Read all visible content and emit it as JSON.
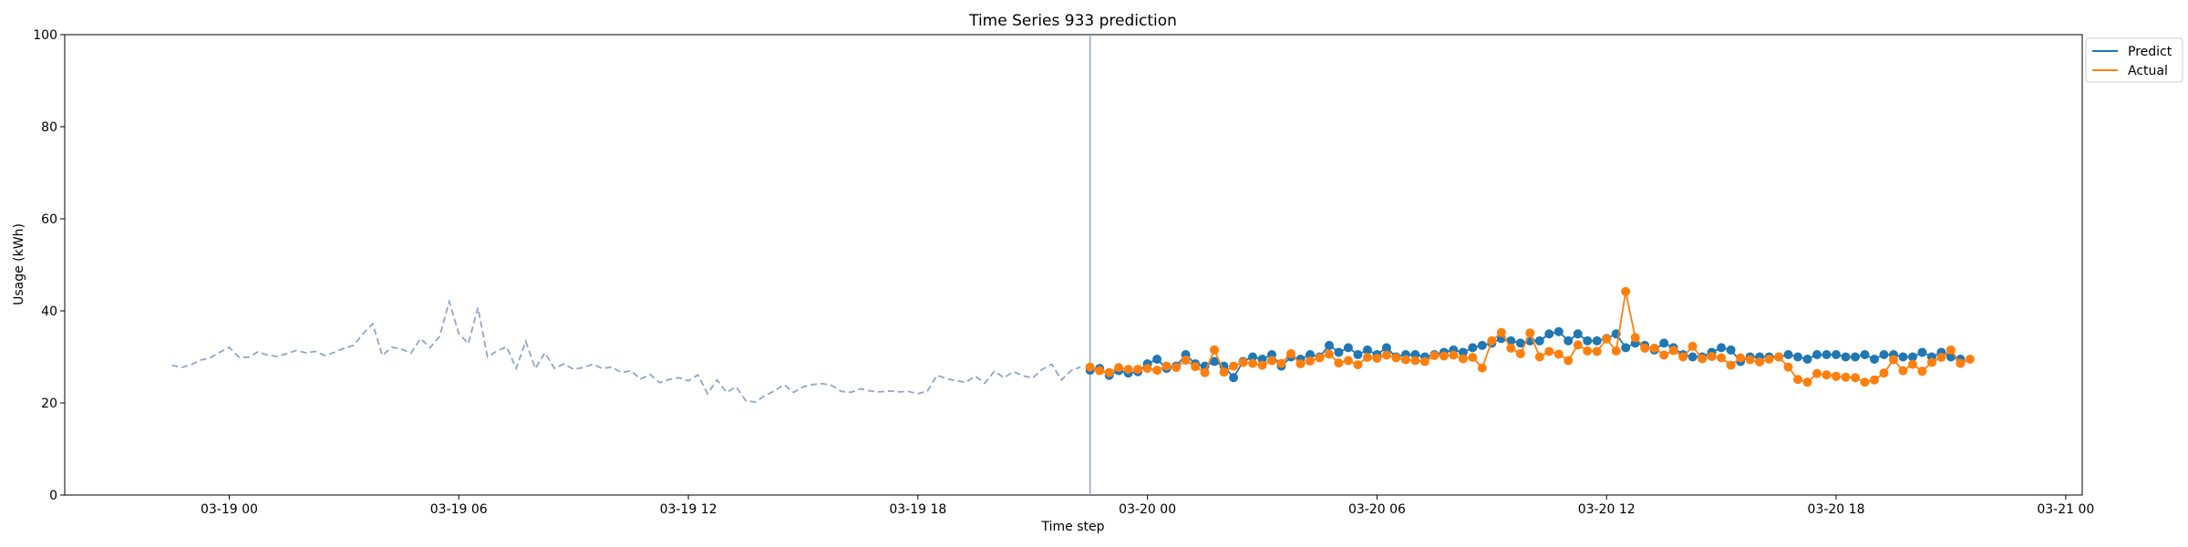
{
  "chart_data": {
    "type": "line",
    "title": "Time Series 933 prediction",
    "xlabel": "Time step",
    "ylabel": "Usage (kWh)",
    "ylim": [
      0,
      100
    ],
    "xlim": [
      "03-18 19:42",
      "03-21 00:26"
    ],
    "x_ticks": [
      "03-19 00",
      "03-19 06",
      "03-19 12",
      "03-19 18",
      "03-20 00",
      "03-20 06",
      "03-20 12",
      "03-20 18",
      "03-21 00"
    ],
    "y_ticks": [
      "0",
      "20",
      "40",
      "60",
      "80",
      "100"
    ],
    "grid": false,
    "legend_position": "upper-right outside",
    "split_time": "03-19 22:30",
    "history": {
      "start": "03-18 22:30",
      "step_minutes": 15,
      "color": "#8fa5c9",
      "style": "dashed",
      "values": [
        28.2,
        27.7,
        28.3,
        29.3,
        29.8,
        31.0,
        32.1,
        30.0,
        29.9,
        31.1,
        30.4,
        30.1,
        30.7,
        31.4,
        30.9,
        31.2,
        30.3,
        31.0,
        31.9,
        32.5,
        35.1,
        37.2,
        30.3,
        32.1,
        31.7,
        30.8,
        34.0,
        32.0,
        34.5,
        42.0,
        35.1,
        32.9,
        40.7,
        30.0,
        31.3,
        32.2,
        27.5,
        33.4,
        27.5,
        30.9,
        27.5,
        28.5,
        27.3,
        27.7,
        28.4,
        27.5,
        27.8,
        26.6,
        27.0,
        25.2,
        26.2,
        24.4,
        25.1,
        25.5,
        24.8,
        26.1,
        22.0,
        25.0,
        22.3,
        23.5,
        20.5,
        20.2,
        21.6,
        22.6,
        24.0,
        22.3,
        23.5,
        24.0,
        24.2,
        23.8,
        22.5,
        22.3,
        23.1,
        22.6,
        22.4,
        22.6,
        22.4,
        22.5,
        22.0,
        22.6,
        26.0,
        25.3,
        24.8,
        24.5,
        25.8,
        24.3,
        26.9,
        25.5,
        26.8,
        25.9,
        25.4,
        27.3,
        28.4,
        25.0,
        27.0,
        27.8
      ]
    },
    "series": [
      {
        "name": "Predict",
        "color": "#1f77b4",
        "start": "03-19 22:30",
        "step_minutes": 15,
        "values": [
          27.1,
          27.5,
          26.0,
          27.0,
          26.5,
          26.8,
          28.5,
          29.5,
          27.5,
          28.0,
          30.5,
          28.5,
          28.0,
          29.0,
          28.0,
          25.5,
          29.0,
          30.0,
          29.5,
          30.5,
          28.0,
          30.0,
          29.5,
          30.5,
          30.0,
          32.5,
          31.0,
          32.0,
          30.5,
          31.5,
          30.5,
          32.0,
          30.0,
          30.5,
          30.5,
          30.0,
          30.5,
          31.0,
          31.5,
          31.0,
          32.0,
          32.5,
          33.0,
          34.0,
          33.5,
          33.0,
          33.5,
          33.5,
          35.0,
          35.5,
          33.5,
          35.0,
          33.5,
          33.5,
          34.0,
          35.0,
          32.0,
          33.0,
          32.5,
          31.5,
          33.0,
          32.0,
          30.5,
          30.0,
          30.0,
          31.0,
          32.0,
          31.5,
          29.0,
          30.0,
          30.0,
          30.0,
          30.0,
          30.5,
          30.0,
          29.5,
          30.5,
          30.5,
          30.5,
          30.0,
          30.0,
          30.5,
          29.5,
          30.5,
          30.5,
          30.0,
          30.0,
          31.0,
          30.0,
          31.0,
          30.0,
          29.5
        ]
      },
      {
        "name": "Actual",
        "color": "#ff7f0e",
        "start": "03-19 22:30",
        "step_minutes": 15,
        "values": [
          27.8,
          27.0,
          26.6,
          27.7,
          27.3,
          27.3,
          27.5,
          27.1,
          28.0,
          27.7,
          29.3,
          27.9,
          26.6,
          31.5,
          26.7,
          28.0,
          28.8,
          28.6,
          28.2,
          29.2,
          28.6,
          30.7,
          28.5,
          29.1,
          29.8,
          30.6,
          28.7,
          29.2,
          28.3,
          29.9,
          29.7,
          30.4,
          29.8,
          29.4,
          29.2,
          29.0,
          30.3,
          30.2,
          30.4,
          29.6,
          29.9,
          27.6,
          33.5,
          35.3,
          31.9,
          30.7,
          35.2,
          30.0,
          31.2,
          30.6,
          29.2,
          32.6,
          31.3,
          31.2,
          33.9,
          31.3,
          44.2,
          34.2,
          31.9,
          31.9,
          30.4,
          31.4,
          30.0,
          32.3,
          29.6,
          30.1,
          29.8,
          28.2,
          29.8,
          29.4,
          28.9,
          29.5,
          30.0,
          27.8,
          25.1,
          24.5,
          26.4,
          26.1,
          25.8,
          25.6,
          25.5,
          24.5,
          25.0,
          26.5,
          29.4,
          27.0,
          28.4,
          26.9,
          28.8,
          29.9,
          31.5,
          28.6,
          29.5
        ]
      }
    ]
  }
}
